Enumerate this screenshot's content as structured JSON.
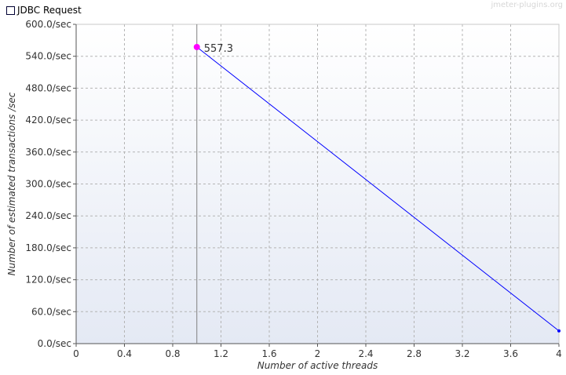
{
  "chart_data": {
    "type": "line",
    "title": "",
    "xlabel": "Number of active threads",
    "ylabel": "Number of estimated transactions /sec",
    "xlim": [
      0,
      4
    ],
    "ylim": [
      0,
      600
    ],
    "x_ticks": [
      "0",
      "0.4",
      "0.8",
      "1.2",
      "1.6",
      "2",
      "2.4",
      "2.8",
      "3.2",
      "3.6",
      "4"
    ],
    "y_ticks": [
      "0.0/sec",
      "60.0/sec",
      "120.0/sec",
      "180.0/sec",
      "240.0/sec",
      "300.0/sec",
      "360.0/sec",
      "420.0/sec",
      "480.0/sec",
      "540.0/sec",
      "600.0/sec"
    ],
    "grid": true,
    "legend_position": "top-left",
    "series": [
      {
        "name": "JDBC Request",
        "color": "#0000ff",
        "x": [
          1,
          4
        ],
        "y": [
          557.3,
          24
        ]
      }
    ],
    "highlight": {
      "x": 1,
      "y": 557.3,
      "label": "557.3",
      "color": "#ff00ff"
    },
    "watermark": "jmeter-plugins.org"
  }
}
